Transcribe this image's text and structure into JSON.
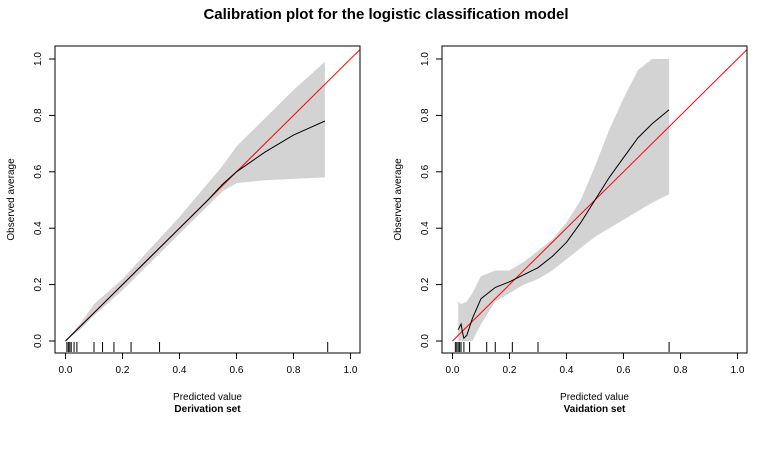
{
  "title": "Calibration plot for the logistic classification model",
  "chart_data": [
    {
      "type": "line",
      "panel": "left",
      "xlabel": "Predicted value",
      "subtitle": "Derivation set",
      "ylabel": "Observed average",
      "xlim": [
        0,
        1
      ],
      "ylim": [
        0,
        1
      ],
      "xticks": [
        0.0,
        0.2,
        0.4,
        0.6,
        0.8,
        1.0
      ],
      "yticks": [
        0.0,
        0.2,
        0.4,
        0.6,
        0.8,
        1.0
      ],
      "tick_labels": [
        "0.0",
        "0.2",
        "0.4",
        "0.6",
        "0.8",
        "1.0"
      ],
      "reference_line": {
        "name": "perfect calibration",
        "color": "#ff0000"
      },
      "series": [
        {
          "name": "calibration",
          "color": "#000000",
          "x": [
            0.0,
            0.02,
            0.05,
            0.1,
            0.15,
            0.2,
            0.3,
            0.4,
            0.5,
            0.55,
            0.6,
            0.7,
            0.8,
            0.91
          ],
          "y": [
            0.0,
            0.02,
            0.05,
            0.1,
            0.15,
            0.2,
            0.3,
            0.4,
            0.5,
            0.555,
            0.6,
            0.67,
            0.73,
            0.78
          ]
        }
      ],
      "band": {
        "name": "confidence band",
        "color": "#d3d3d3",
        "x": [
          0.0,
          0.05,
          0.1,
          0.2,
          0.3,
          0.4,
          0.5,
          0.55,
          0.6,
          0.7,
          0.8,
          0.91
        ],
        "lower": [
          0.0,
          0.04,
          0.09,
          0.18,
          0.28,
          0.38,
          0.48,
          0.53,
          0.56,
          0.57,
          0.575,
          0.58
        ],
        "upper": [
          0.0,
          0.06,
          0.13,
          0.22,
          0.33,
          0.44,
          0.56,
          0.62,
          0.69,
          0.79,
          0.89,
          0.99
        ]
      },
      "rug": [
        0.005,
        0.01,
        0.015,
        0.02,
        0.03,
        0.04,
        0.1,
        0.13,
        0.17,
        0.23,
        0.33,
        0.92
      ]
    },
    {
      "type": "line",
      "panel": "right",
      "xlabel": "Predicted value",
      "subtitle": "Vaidation set",
      "ylabel": "Observed average",
      "xlim": [
        0,
        1
      ],
      "ylim": [
        0,
        1
      ],
      "xticks": [
        0.0,
        0.2,
        0.4,
        0.6,
        0.8,
        1.0
      ],
      "yticks": [
        0.0,
        0.2,
        0.4,
        0.6,
        0.8,
        1.0
      ],
      "tick_labels": [
        "0.0",
        "0.2",
        "0.4",
        "0.6",
        "0.8",
        "1.0"
      ],
      "reference_line": {
        "name": "perfect calibration",
        "color": "#ff0000"
      },
      "series": [
        {
          "name": "calibration",
          "color": "#000000",
          "x": [
            0.02,
            0.03,
            0.035,
            0.04,
            0.05,
            0.07,
            0.1,
            0.15,
            0.2,
            0.25,
            0.3,
            0.35,
            0.4,
            0.45,
            0.5,
            0.55,
            0.6,
            0.65,
            0.7,
            0.76
          ],
          "y": [
            0.04,
            0.06,
            0.03,
            0.01,
            0.02,
            0.08,
            0.15,
            0.19,
            0.21,
            0.235,
            0.26,
            0.3,
            0.35,
            0.42,
            0.5,
            0.58,
            0.65,
            0.72,
            0.77,
            0.82
          ]
        }
      ],
      "band": {
        "name": "confidence band",
        "color": "#d3d3d3",
        "x": [
          0.02,
          0.03,
          0.05,
          0.07,
          0.1,
          0.15,
          0.2,
          0.25,
          0.3,
          0.35,
          0.4,
          0.45,
          0.5,
          0.55,
          0.6,
          0.65,
          0.7,
          0.76
        ],
        "lower": [
          0.0,
          0.0,
          0.0,
          0.0,
          0.06,
          0.14,
          0.17,
          0.2,
          0.22,
          0.25,
          0.29,
          0.33,
          0.37,
          0.4,
          0.43,
          0.46,
          0.49,
          0.52
        ],
        "upper": [
          0.14,
          0.13,
          0.14,
          0.17,
          0.23,
          0.25,
          0.25,
          0.28,
          0.32,
          0.36,
          0.42,
          0.5,
          0.62,
          0.75,
          0.86,
          0.96,
          1.0,
          1.0
        ]
      },
      "rug": [
        0.01,
        0.015,
        0.02,
        0.025,
        0.03,
        0.04,
        0.06,
        0.12,
        0.15,
        0.21,
        0.3,
        0.76
      ]
    }
  ]
}
